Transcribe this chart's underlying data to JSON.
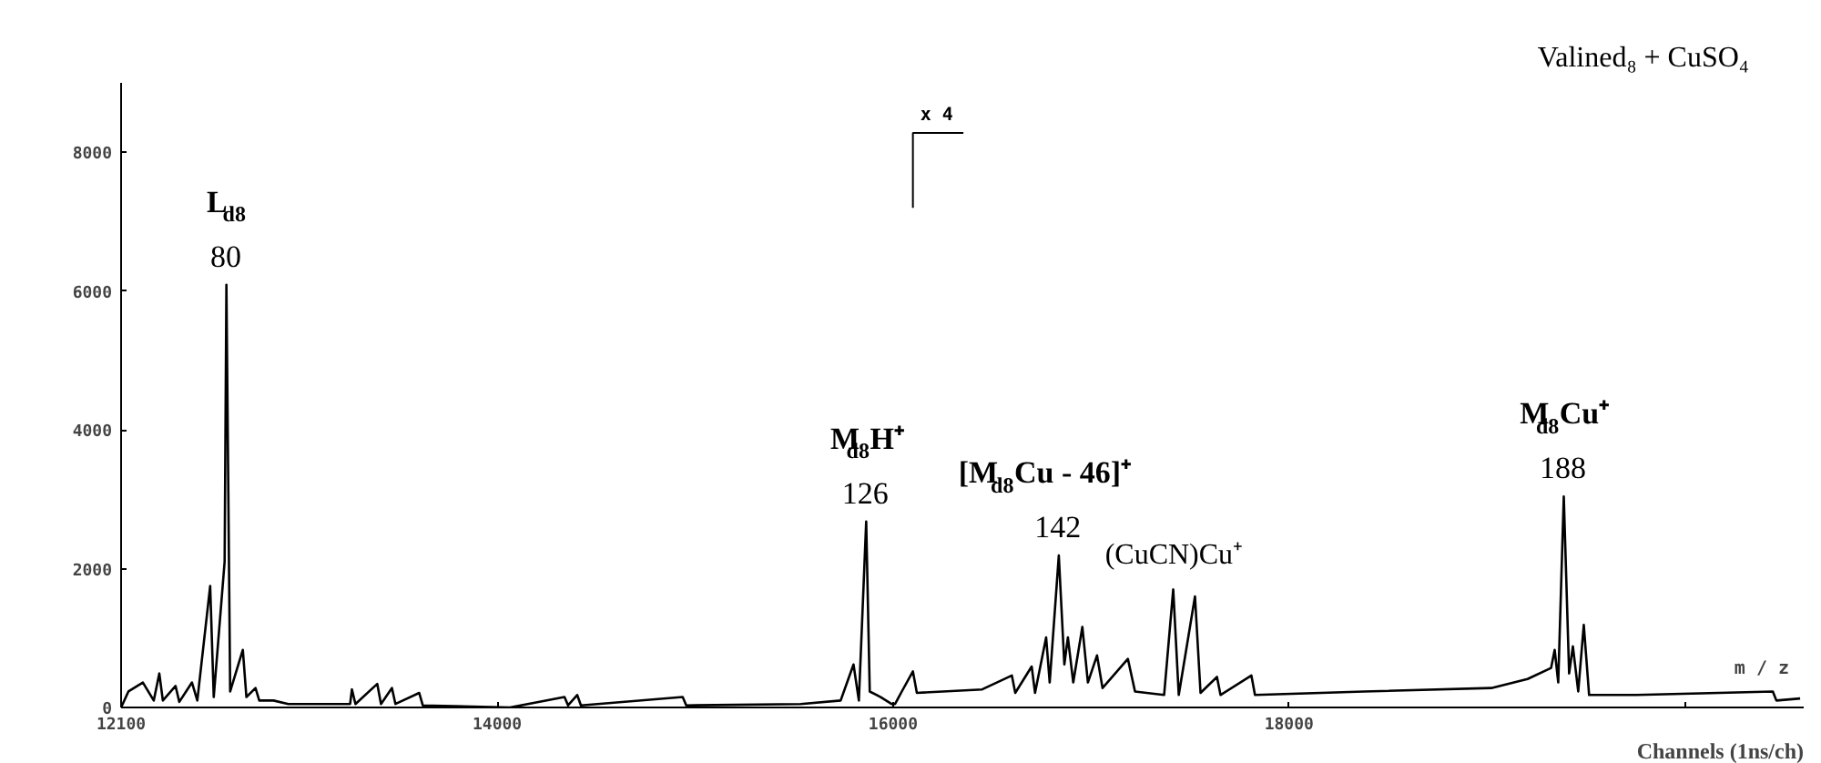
{
  "chart_data": {
    "type": "line",
    "title": "Valined₈ + CuSO₄",
    "xlabel": "Channels (1ns/ch)",
    "xlim": [
      12100,
      20600
    ],
    "xticks": [
      12100,
      14000,
      16000,
      18000,
      {
        "value": 20000,
        "label": null
      }
    ],
    "ylim": [
      0,
      9000
    ],
    "yticks": [
      0,
      2000,
      4000,
      6000,
      8000
    ],
    "grid": false,
    "marker": "none",
    "line_style": "solid",
    "ref_lines": [
      {
        "axis": "x",
        "value": 16100,
        "label": "x 4"
      }
    ],
    "series": [
      {
        "color": "#000000",
        "x": [
          12100,
          12137,
          12210,
          12265,
          12293,
          12311,
          12375,
          12394,
          12458,
          12485,
          12550,
          12568,
          12623,
          12632,
          12651,
          12715,
          12733,
          12779,
          12798,
          12870,
          12945,
          13257,
          13266,
          13284,
          13394,
          13413,
          13468,
          13486,
          13606,
          13624,
          14064,
          14340,
          14358,
          14404,
          14423,
          14937,
          14955,
          15533,
          15735,
          15800,
          15827,
          15864,
          15882,
          15937,
          15992,
          16010,
          16040,
          16100,
          16120,
          16450,
          16600,
          16617,
          16700,
          16717,
          16773,
          16791,
          16837,
          16865,
          16883,
          16910,
          16956,
          16984,
          17030,
          17058,
          17186,
          17222,
          17369,
          17415,
          17443,
          17525,
          17553,
          17636,
          17654,
          17810,
          17828,
          18379,
          19022,
          19205,
          19324,
          19342,
          19360,
          19388,
          19415,
          19434,
          19461,
          19489,
          19516,
          19755,
          20444,
          20462,
          20582
        ],
        "values": [
          0,
          230,
          360,
          100,
          490,
          100,
          310,
          80,
          360,
          100,
          1750,
          150,
          2100,
          6090,
          230,
          830,
          150,
          280,
          100,
          100,
          50,
          50,
          260,
          50,
          340,
          50,
          280,
          50,
          210,
          30,
          0,
          150,
          30,
          180,
          30,
          150,
          30,
          50,
          100,
          620,
          100,
          2680,
          230,
          150,
          50,
          50,
          210,
          520,
          210,
          260,
          460,
          210,
          590,
          210,
          1010,
          360,
          2190,
          620,
          1010,
          360,
          1160,
          360,
          750,
          280,
          700,
          230,
          180,
          1700,
          180,
          1600,
          210,
          440,
          180,
          460,
          180,
          230,
          280,
          410,
          570,
          830,
          360,
          3040,
          490,
          880,
          230,
          1190,
          180,
          180,
          230,
          100,
          130
        ]
      }
    ],
    "annotations": [
      {
        "text": "80",
        "x": 12632,
        "y": 6090
      },
      {
        "text": "L$_{d8}$",
        "x": 12632,
        "y": 6090
      },
      {
        "text": "126",
        "x": 15864,
        "y": 2680
      },
      {
        "text": "M$_{d8}$H⁺",
        "x": 15864,
        "y": 2680
      },
      {
        "text": "142",
        "x": 16837,
        "y": 2190
      },
      {
        "text": "[M$_{d8}$Cu - 46]⁺",
        "x": 16837,
        "y": 2190
      },
      {
        "text": "(CuCN)Cu⁺",
        "x": 17415,
        "y": 1700
      },
      {
        "text": "188",
        "x": 19388,
        "y": 3040
      },
      {
        "text": "M$_{d8}$Cu⁺",
        "x": 19388,
        "y": 3040
      },
      "m / z"
    ]
  }
}
